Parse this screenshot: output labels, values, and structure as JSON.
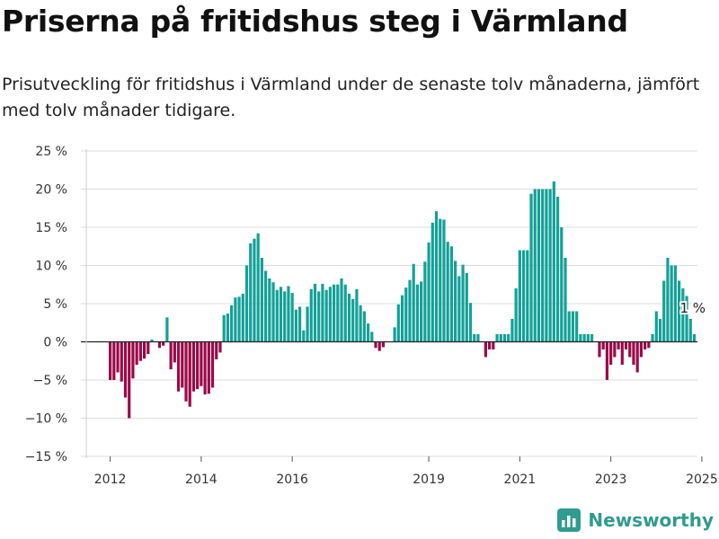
{
  "title": "Priserna på fritidshus steg i Värmland",
  "subtitle": "Prisutveckling för fritidshus i Värmland under de senaste tolv månaderna, jämfört med tolv månader tidigare.",
  "brand": {
    "name": "Newsworthy",
    "icon": "newsworthy-logo-icon"
  },
  "colors": {
    "positive": "#13a198",
    "negative": "#9a0a4a",
    "grid": "#dddddd",
    "zero_line": "#222222",
    "brand": "#2f9c8f"
  },
  "chart_data": {
    "type": "bar",
    "title": "Priserna på fritidshus steg i Värmland",
    "xlabel": "",
    "ylabel": "",
    "ylim": [
      -15,
      25
    ],
    "y_ticks": [
      25,
      20,
      15,
      10,
      5,
      0,
      -5,
      -10,
      -15
    ],
    "y_tick_labels": [
      "25 %",
      "20 %",
      "15 %",
      "10 %",
      "5 %",
      "0 %",
      "−5 %",
      "−10 %",
      "−15 %"
    ],
    "x_tick_labels": [
      "2012",
      "2014",
      "2016",
      "2019",
      "2021",
      "2023",
      "2025"
    ],
    "grid": true,
    "last_value_label": "1 %",
    "unit": "%",
    "values": [
      -5,
      -5,
      -4,
      -5.2,
      -7.3,
      -10,
      -4.8,
      -3,
      -2.5,
      -2.2,
      -1.6,
      0.3,
      0,
      -0.8,
      -0.5,
      3.2,
      -3.6,
      -2.7,
      -6.5,
      -6,
      -7.8,
      -8.5,
      -6.5,
      -6.2,
      -5.8,
      -6.9,
      -6.8,
      -6,
      -2.3,
      -1.4,
      3.5,
      3.7,
      4.8,
      5.8,
      5.9,
      6.3,
      10,
      12.9,
      13.5,
      14.2,
      11,
      9.3,
      8.3,
      7.8,
      6.8,
      7.2,
      6.6,
      7.3,
      6.4,
      4.2,
      4.6,
      1.5,
      4.6,
      6.9,
      7.6,
      6.6,
      7.6,
      6.8,
      7.2,
      7.5,
      7.5,
      8.3,
      7.5,
      6.3,
      5.6,
      6.9,
      4.8,
      4,
      2.4,
      1.3,
      -0.8,
      -1.2,
      -0.7,
      0,
      0,
      1.9,
      4.9,
      6.1,
      7.1,
      8.1,
      10.2,
      7.5,
      7.9,
      10.5,
      13,
      15.6,
      17.1,
      16.1,
      16,
      13.1,
      12.5,
      10.6,
      8.6,
      10.1,
      9,
      5.1,
      1,
      1,
      0,
      -2,
      -1,
      -1,
      1,
      1,
      1,
      1,
      3,
      7,
      12,
      12,
      12,
      19.4,
      20,
      20,
      20,
      20,
      20,
      21,
      19,
      15,
      11,
      4,
      4,
      4,
      1,
      1,
      1,
      1,
      0,
      -2,
      -1,
      -5,
      -3,
      -2,
      -1,
      -3,
      -1,
      -2,
      -3,
      -4,
      -2,
      -1,
      -0.8,
      1,
      4,
      3,
      8,
      11,
      10,
      10,
      8,
      7,
      6,
      3,
      1
    ]
  }
}
